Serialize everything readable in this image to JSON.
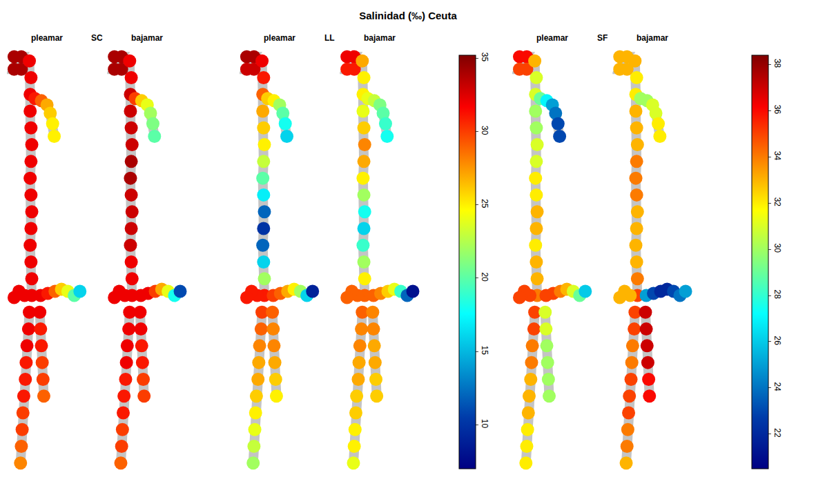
{
  "chart_data": {
    "type": "map",
    "title": "Salinidad (‰) Ceuta",
    "color": "Jet",
    "tick_labels": false,
    "xlim": [
      -0.5,
      9.5
    ],
    "ylim": [
      101,
      -1
    ],
    "geometry": [
      {
        "x": [
          0.4,
          1.3,
          0.4,
          1.3
        ],
        "y": [
          1,
          1,
          4,
          4
        ]
      },
      {
        "x": [
          2.3,
          2.5,
          2.4,
          2.4,
          2.5,
          2.6,
          2.5,
          2.4,
          2.5,
          2.6,
          2.5,
          2.4,
          2.5,
          2.6,
          2.6
        ],
        "y": [
          2,
          6,
          10,
          14,
          18,
          22,
          26,
          30,
          34,
          38,
          42,
          46,
          50,
          54,
          58
        ]
      },
      {
        "x": [
          3.0,
          3.8,
          4.5,
          4.9,
          5.2,
          5.4
        ],
        "y": [
          11,
          11.5,
          12.5,
          14.5,
          17,
          20
        ]
      },
      {
        "x": [
          3.7,
          4.6,
          5.5,
          6.3,
          7.1,
          7.9,
          8.6
        ],
        "y": [
          58,
          57.5,
          57,
          56.5,
          57,
          58,
          57
        ]
      },
      {
        "x": [
          1.7,
          1.0,
          0.4
        ],
        "y": [
          58,
          57,
          58.5
        ]
      },
      {
        "x": [
          2.3,
          2.2,
          2.0,
          1.9,
          1.8,
          1.6,
          1.5,
          1.4,
          1.3,
          1.2
        ],
        "y": [
          62,
          66,
          70,
          74,
          78,
          82,
          86,
          90,
          94,
          98
        ]
      },
      {
        "x": [
          3.6,
          3.7,
          3.8,
          3.9,
          4.0,
          4.1
        ],
        "y": [
          62,
          66,
          70,
          74,
          78,
          82
        ]
      }
    ],
    "colorbars": [
      {
        "range": [
          7,
          35.2
        ],
        "ticks": [
          10,
          15,
          20,
          25,
          30,
          35
        ],
        "groups": [
          {
            "name": "SC",
            "panels": [
              {
                "name": "pleamar",
                "values": [
                  [
                    34,
                    34,
                    34,
                    34
                  ],
                  [
                    32,
                    32,
                    32,
                    32,
                    32,
                    32,
                    32,
                    32,
                    32,
                    32,
                    32,
                    32,
                    32,
                    32,
                    32
                  ],
                  [
                    31,
                    29,
                    27,
                    26,
                    25,
                    25
                  ],
                  [
                    32,
                    31,
                    29,
                    26,
                    24,
                    20,
                    16
                  ],
                  [
                    32,
                    32,
                    32
                  ],
                  [
                    32,
                    32,
                    32,
                    31,
                    31,
                    31,
                    30,
                    30,
                    29,
                    28
                  ],
                  [
                    32,
                    31,
                    31,
                    30,
                    30,
                    29
                  ]
                ]
              },
              {
                "name": "bajamar",
                "values": [
                  [
                    34,
                    34,
                    34,
                    34
                  ],
                  [
                    32,
                    32,
                    33,
                    33,
                    33,
                    33,
                    34,
                    34,
                    33,
                    33,
                    33,
                    33,
                    32,
                    32,
                    32
                  ],
                  [
                    30,
                    26,
                    24,
                    22,
                    21,
                    20
                  ],
                  [
                    32,
                    32,
                    30,
                    27,
                    24,
                    18,
                    11
                  ],
                  [
                    32,
                    32,
                    32
                  ],
                  [
                    32,
                    32,
                    32,
                    32,
                    31,
                    31,
                    31,
                    30,
                    30,
                    29
                  ],
                  [
                    32,
                    32,
                    31,
                    31,
                    30,
                    30
                  ]
                ]
              }
            ]
          },
          {
            "name": "LL",
            "panels": [
              {
                "name": "pleamar",
                "values": [
                  [
                    34,
                    34,
                    33,
                    33
                  ],
                  [
                    32,
                    31,
                    29,
                    27,
                    26,
                    25,
                    23,
                    20,
                    17,
                    12,
                    10,
                    12,
                    16,
                    22,
                    31
                  ],
                  [
                    26,
                    25,
                    22,
                    20,
                    18,
                    16
                  ],
                  [
                    30,
                    29,
                    27,
                    25,
                    22,
                    16,
                    9
                  ],
                  [
                    31,
                    31,
                    31
                  ],
                  [
                    30,
                    29,
                    28,
                    27,
                    27,
                    26,
                    25,
                    24,
                    23,
                    22
                  ],
                  [
                    29,
                    28,
                    28,
                    27,
                    26,
                    25
                  ]
                ]
              },
              {
                "name": "bajamar",
                "values": [
                  [
                    32,
                    32,
                    31,
                    31
                  ],
                  [
                    27,
                    25,
                    25,
                    24,
                    26,
                    28,
                    27,
                    25,
                    22,
                    18,
                    16,
                    19,
                    22,
                    25,
                    29
                  ],
                  [
                    24,
                    23,
                    21,
                    20,
                    19,
                    18
                  ],
                  [
                    29,
                    28,
                    26,
                    24,
                    19,
                    12,
                    8
                  ],
                  [
                    29,
                    29,
                    29
                  ],
                  [
                    29,
                    28,
                    28,
                    27,
                    27,
                    26,
                    26,
                    25,
                    25,
                    24
                  ],
                  [
                    28,
                    28,
                    27,
                    27,
                    26,
                    26
                  ]
                ]
              }
            ]
          }
        ]
      },
      {
        "range": [
          20.5,
          38.4
        ],
        "ticks": [
          22,
          24,
          26,
          28,
          30,
          32,
          34,
          36,
          38
        ],
        "groups": [
          {
            "name": "SF",
            "panels": [
              {
                "name": "pleamar",
                "values": [
                  [
                    36,
                    36,
                    35,
                    35
                  ],
                  [
                    33,
                    31,
                    31,
                    30,
                    30,
                    31,
                    31,
                    32,
                    32,
                    33,
                    33,
                    32,
                    33,
                    33,
                    34
                  ],
                  [
                    29,
                    27,
                    25,
                    24,
                    23,
                    23
                  ],
                  [
                    35,
                    35,
                    34,
                    33,
                    31,
                    29,
                    26
                  ],
                  [
                    35,
                    35,
                    35
                  ],
                  [
                    35,
                    35,
                    34,
                    34,
                    33,
                    33,
                    33,
                    32,
                    32,
                    32
                  ],
                  [
                    31,
                    31,
                    30,
                    30,
                    30,
                    30
                  ]
                ]
              },
              {
                "name": "bajamar",
                "values": [
                  [
                    33,
                    33,
                    33,
                    33
                  ],
                  [
                    33,
                    32,
                    32,
                    33,
                    33,
                    33,
                    34,
                    34,
                    34,
                    33,
                    33,
                    33,
                    33,
                    34,
                    35
                  ],
                  [
                    30,
                    30,
                    31,
                    31,
                    32,
                    32
                  ],
                  [
                    25,
                    23,
                    22,
                    22,
                    23,
                    24,
                    25
                  ],
                  [
                    33,
                    33,
                    33
                  ],
                  [
                    35,
                    35,
                    34,
                    34,
                    35,
                    35,
                    35,
                    34,
                    34,
                    33
                  ],
                  [
                    37,
                    37,
                    37,
                    37,
                    36,
                    36
                  ]
                ]
              }
            ]
          }
        ]
      }
    ]
  }
}
